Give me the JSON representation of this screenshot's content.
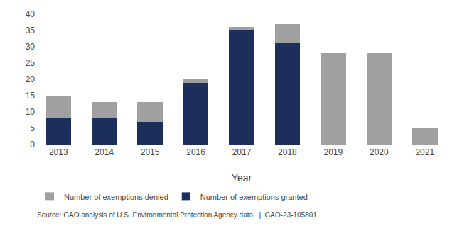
{
  "chart_data": {
    "type": "bar",
    "stacked": true,
    "categories": [
      "2013",
      "2014",
      "2015",
      "2016",
      "2017",
      "2018",
      "2019",
      "2020",
      "2021"
    ],
    "series": [
      {
        "name": "Number of exemptions granted",
        "color": "#1c2e5c",
        "values": [
          8,
          8,
          7,
          19,
          35,
          31,
          0,
          0,
          0
        ]
      },
      {
        "name": "Number of exemptions denied",
        "color": "#a0a0a0",
        "values": [
          7,
          5,
          6,
          1,
          1,
          6,
          28,
          28,
          5
        ]
      }
    ],
    "xlabel": "Year",
    "ylim": [
      0,
      40
    ],
    "yticks": [
      0,
      5,
      10,
      15,
      20,
      25,
      30,
      35,
      40
    ],
    "grid": false,
    "legend": "bottom",
    "annotations": [
      "Source: GAO analysis of U.S. Environmental Protection Agency data.  |  GAO-23-105801"
    ]
  }
}
